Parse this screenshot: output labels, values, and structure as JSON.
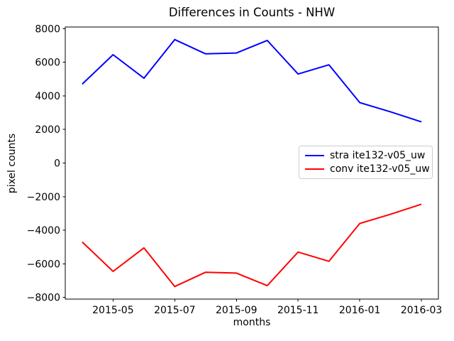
{
  "chart_data": {
    "type": "line",
    "title": "Differences in Counts - NHW",
    "xlabel": "months",
    "ylabel": "pixel counts",
    "x_categories": [
      "2015-04",
      "2015-05",
      "2015-06",
      "2015-07",
      "2015-08",
      "2015-09",
      "2015-10",
      "2015-11",
      "2015-12",
      "2016-01",
      "2016-02",
      "2016-03"
    ],
    "x_tick_labels": [
      "2015-05",
      "2015-07",
      "2015-09",
      "2015-11",
      "2016-01",
      "2016-03"
    ],
    "x_tick_indices": [
      1,
      3,
      5,
      7,
      9,
      11
    ],
    "y_tick_values": [
      8000,
      6000,
      4000,
      2000,
      0,
      -2000,
      -4000,
      -6000,
      -8000
    ],
    "y_tick_labels": [
      "8000",
      "6000",
      "4000",
      "2000",
      "0",
      "−2000",
      "−4000",
      "−6000",
      "−8000"
    ],
    "ylim": [
      -8100,
      8100
    ],
    "grid": false,
    "legend_position": "center right",
    "axis_color": "#000000",
    "legend_border_color": "#cccccc",
    "series": [
      {
        "name": "stra ite132-v05_uw",
        "color": "#0000ff",
        "values": [
          4700,
          6450,
          5050,
          7350,
          6500,
          6550,
          7300,
          5300,
          5850,
          3600,
          3050,
          2450
        ]
      },
      {
        "name": "conv ite132-v05_uw",
        "color": "#ff0000",
        "values": [
          -4700,
          -6450,
          -5050,
          -7350,
          -6500,
          -6550,
          -7300,
          -5300,
          -5850,
          -3600,
          -3050,
          -2450
        ]
      }
    ]
  }
}
